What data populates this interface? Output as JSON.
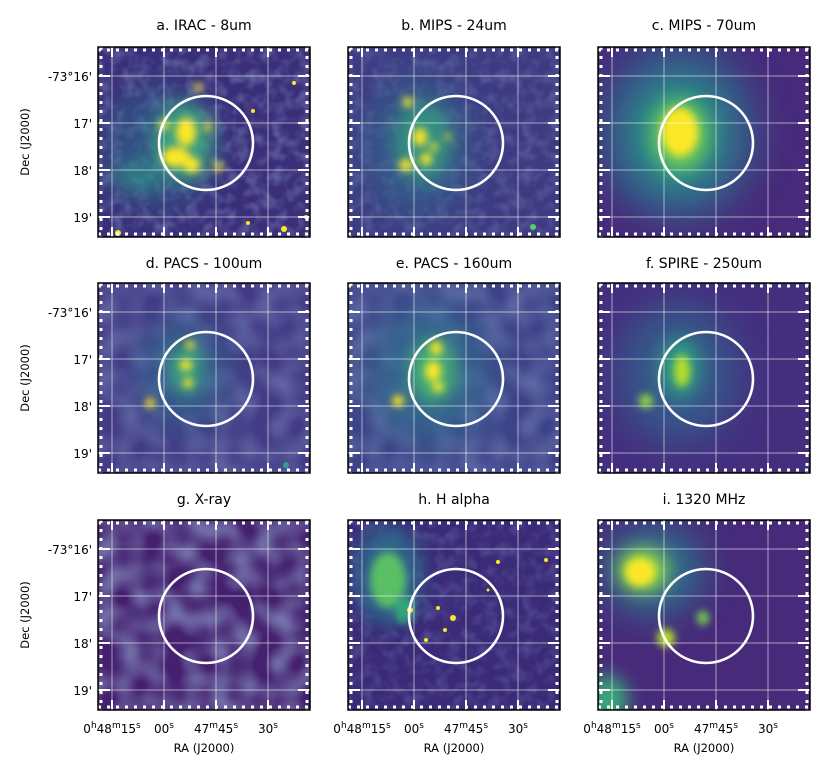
{
  "figure": {
    "panels": [
      {
        "id": "a",
        "title": "a. IRAC - 8um"
      },
      {
        "id": "b",
        "title": "b. MIPS - 24um"
      },
      {
        "id": "c",
        "title": "c. MIPS - 70um"
      },
      {
        "id": "d",
        "title": "d. PACS - 100um"
      },
      {
        "id": "e",
        "title": "e. PACS - 160um"
      },
      {
        "id": "f",
        "title": "f. SPIRE - 250um"
      },
      {
        "id": "g",
        "title": "g. X-ray"
      },
      {
        "id": "h",
        "title": "h. H alpha"
      },
      {
        "id": "i",
        "title": "i. 1320 MHz"
      }
    ],
    "dec_label": "Dec (J2000)",
    "ra_label": "RA (J2000)",
    "dec_ticks": [
      "-73°16'",
      "17'",
      "18'",
      "19'"
    ],
    "ra_ticks": {
      "first": {
        "h": "0",
        "h_unit": "h",
        "m": "48",
        "m_unit": "m",
        "s": "15",
        "s_unit": "s"
      },
      "second": {
        "s": "00",
        "s_unit": "s"
      },
      "third": {
        "m": "47",
        "m_unit": "m",
        "s": "45",
        "s_unit": "s"
      },
      "fourth": {
        "s": "30",
        "s_unit": "s"
      }
    },
    "colors": {
      "background": "#440154",
      "low": "#3b528b",
      "mid": "#21918c",
      "high": "#5ec962",
      "peak": "#fde725",
      "overlay": "#ffffff"
    }
  }
}
